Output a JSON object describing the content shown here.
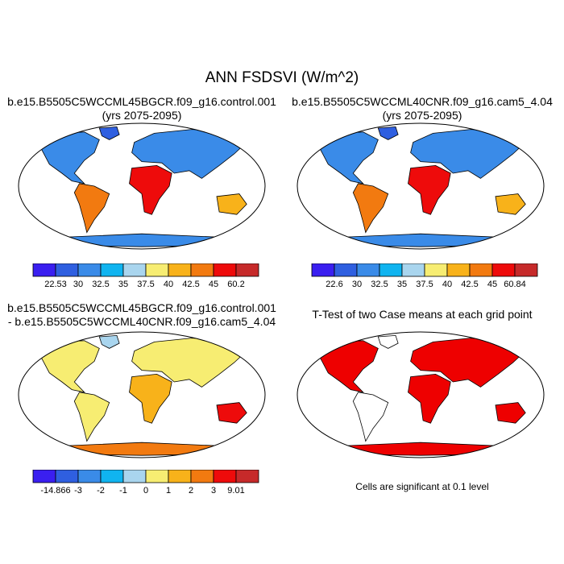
{
  "title": "ANN FSDSVI (W/m^2)",
  "panels": {
    "p1": {
      "line1": "b.e15.B5505C5WCCML45BGCR.f09_g16.control.001",
      "line2": "(yrs 2075-2095)"
    },
    "p2": {
      "line1": "b.e15.B5505C5WCCML40CNR.f09_g16.cam5_4.04",
      "line2": "(yrs 2075-2095)"
    },
    "p3": {
      "line1": "b.e15.B5505C5WCCML45BGCR.f09_g16.control.001",
      "line2": "- b.e15.B5505C5WCCML40CNR.f09_g16.cam5_4.04"
    },
    "p4": {
      "line1": "T-Test of two Case means at each grid point",
      "note": "Cells are significant at 0.1 level"
    }
  },
  "colorbars": {
    "cb1": {
      "labels": [
        "22.53",
        "30",
        "32.5",
        "35",
        "37.5",
        "40",
        "42.5",
        "45",
        "60.2"
      ]
    },
    "cb2": {
      "labels": [
        "22.6",
        "30",
        "32.5",
        "35",
        "37.5",
        "40",
        "42.5",
        "45",
        "60.84"
      ]
    },
    "cb3": {
      "labels": [
        "-14.866",
        "-3",
        "-2",
        "-1",
        "0",
        "1",
        "2",
        "3",
        "9.01"
      ]
    }
  },
  "colors": {
    "seq": [
      "#3a1ff0",
      "#2f5fe0",
      "#3a8be8",
      "#10b4f0",
      "#a9d5ee",
      "#f7ed72",
      "#f8b21a",
      "#f27a10",
      "#ee0b0b",
      "#c62a2a"
    ],
    "div": [
      "#3a1ff0",
      "#2f5fe0",
      "#3a8be8",
      "#10b4f0",
      "#a9d5ee",
      "#f7ed72",
      "#f8b21a",
      "#f27a10",
      "#ee0b0b",
      "#c62a2a"
    ],
    "sig": "#ee0000"
  }
}
